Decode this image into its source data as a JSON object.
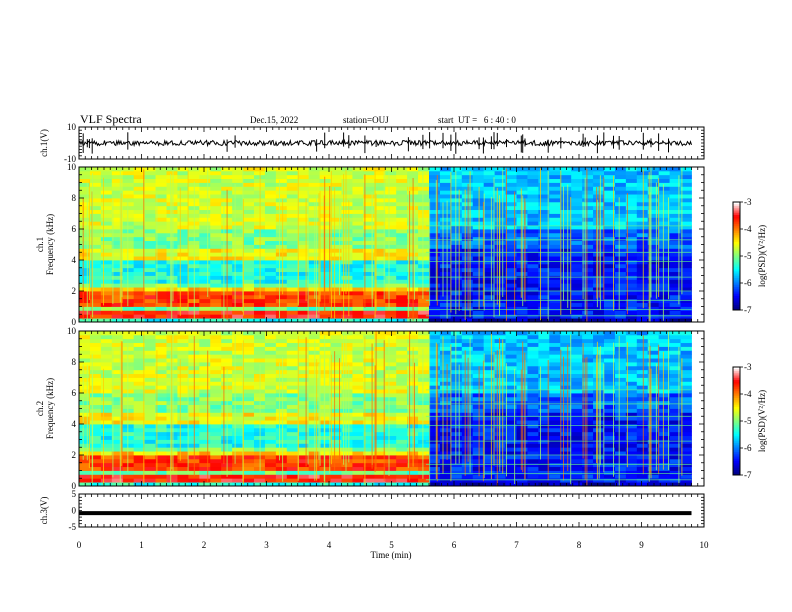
{
  "header": {
    "title": "VLF Spectra",
    "date": "Dec.15, 2022",
    "station": "station=OUJ",
    "start": "start  UT =   6 : 40 : 0"
  },
  "chart_data": {
    "type": "heatmap",
    "xlabel": "Time  (min)",
    "xlim": [
      0,
      10
    ],
    "x_ticks": [
      "0",
      "1",
      "2",
      "3",
      "4",
      "5",
      "6",
      "7",
      "8",
      "9",
      "10"
    ],
    "data_end_min": 9.8,
    "transition_min": 5.55,
    "panels": [
      {
        "kind": "waveform",
        "ylabel": "ch.1(V)",
        "ylim": [
          -10,
          10
        ],
        "y_ticks": [
          "10",
          "-10"
        ],
        "trace_level": 0
      },
      {
        "kind": "spectrogram",
        "ylabel": "ch.1",
        "ylabel2": "Frequency  (kHz)",
        "ylim": [
          0,
          10
        ],
        "y_ticks": [
          "0",
          "2",
          "4",
          "6",
          "8",
          "10"
        ]
      },
      {
        "kind": "spectrogram",
        "ylabel": "ch.2",
        "ylabel2": "Frequency  (kHz)",
        "ylim": [
          0,
          10
        ],
        "y_ticks": [
          "0",
          "2",
          "4",
          "6",
          "8",
          "10"
        ]
      },
      {
        "kind": "waveform",
        "ylabel": "ch.3(V)",
        "ylim": [
          -5,
          5
        ],
        "y_ticks": [
          "5",
          "0",
          "-5"
        ],
        "trace_level": -0.8
      }
    ],
    "colorbar": {
      "label": "log(PSD)(V²/Hz)",
      "range": [
        -7,
        -3
      ],
      "ticks": [
        "-3",
        "-4",
        "-5",
        "-6",
        "-7"
      ],
      "colormap": [
        "#000080",
        "#0000ff",
        "#0080ff",
        "#00ffff",
        "#80ff80",
        "#ffff00",
        "#ff8000",
        "#ff0000",
        "#ffffff"
      ]
    }
  }
}
